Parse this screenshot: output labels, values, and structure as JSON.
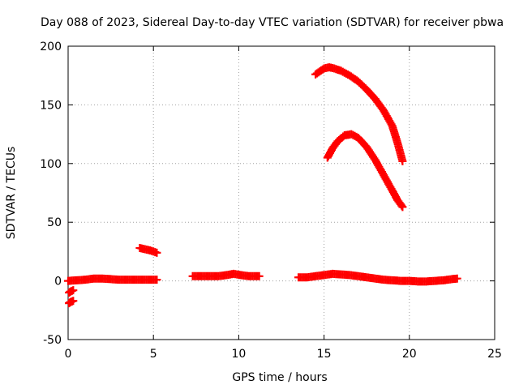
{
  "chart_data": {
    "type": "scatter",
    "title": "Day 088 of 2023, Sidereal Day-to-day VTEC variation (SDTVAR) for receiver pbwa",
    "xlabel": "GPS time / hours",
    "ylabel": "SDTVAR / TECUs",
    "xlim": [
      0,
      25
    ],
    "ylim": [
      -50,
      200
    ],
    "xticks": [
      0,
      5,
      10,
      15,
      20,
      25
    ],
    "yticks": [
      -50,
      0,
      50,
      100,
      150,
      200
    ],
    "grid": true,
    "series_color": "#ff0000",
    "series": [
      {
        "name": "arc-start-1",
        "points": [
          [
            0.05,
            -10
          ],
          [
            0.15,
            -9
          ],
          [
            0.3,
            -8
          ]
        ]
      },
      {
        "name": "arc-start-2",
        "points": [
          [
            0.05,
            -19
          ],
          [
            0.15,
            -18
          ],
          [
            0.3,
            -17
          ]
        ]
      },
      {
        "name": "baseline-1",
        "points": [
          [
            0,
            0
          ],
          [
            0.5,
            0.5
          ],
          [
            1,
            1
          ],
          [
            1.5,
            2
          ],
          [
            2,
            2
          ],
          [
            2.5,
            1.5
          ],
          [
            3,
            1
          ],
          [
            3.5,
            1
          ],
          [
            4,
            1
          ],
          [
            4.5,
            1
          ],
          [
            5,
            1
          ],
          [
            5.2,
            1
          ]
        ]
      },
      {
        "name": "short-arc-1",
        "points": [
          [
            4.2,
            28
          ],
          [
            4.5,
            27
          ],
          [
            4.8,
            26
          ],
          [
            5.0,
            25
          ],
          [
            5.2,
            24
          ]
        ]
      },
      {
        "name": "baseline-2",
        "points": [
          [
            7.3,
            4
          ],
          [
            7.8,
            4
          ],
          [
            8.3,
            4
          ],
          [
            8.8,
            4
          ],
          [
            9.3,
            5
          ],
          [
            9.7,
            6
          ],
          [
            10.1,
            5
          ],
          [
            10.6,
            4
          ],
          [
            11.2,
            4
          ]
        ]
      },
      {
        "name": "baseline-3",
        "points": [
          [
            13.5,
            3
          ],
          [
            14,
            3
          ],
          [
            14.5,
            4
          ],
          [
            15,
            5
          ],
          [
            15.5,
            6
          ],
          [
            16,
            5.5
          ],
          [
            16.5,
            5
          ],
          [
            17,
            4
          ],
          [
            17.5,
            3
          ],
          [
            18,
            2
          ],
          [
            18.5,
            1
          ],
          [
            19,
            0.5
          ],
          [
            19.5,
            0
          ],
          [
            20,
            0
          ],
          [
            20.5,
            -0.5
          ],
          [
            21,
            -0.5
          ],
          [
            21.5,
            0
          ],
          [
            22,
            0.5
          ],
          [
            22.5,
            1.5
          ],
          [
            22.8,
            2
          ]
        ]
      },
      {
        "name": "high-arc-1",
        "points": [
          [
            14.5,
            176
          ],
          [
            15,
            181
          ],
          [
            15.3,
            182
          ],
          [
            15.6,
            181
          ],
          [
            16,
            179
          ],
          [
            16.5,
            175
          ],
          [
            17,
            170
          ],
          [
            17.5,
            163
          ],
          [
            18,
            155
          ],
          [
            18.5,
            145
          ],
          [
            19,
            132
          ],
          [
            19.3,
            118
          ],
          [
            19.6,
            102
          ]
        ]
      },
      {
        "name": "high-arc-2",
        "points": [
          [
            15.2,
            105
          ],
          [
            15.5,
            113
          ],
          [
            15.8,
            119
          ],
          [
            16.2,
            124
          ],
          [
            16.6,
            125
          ],
          [
            17,
            122
          ],
          [
            17.5,
            114
          ],
          [
            18,
            103
          ],
          [
            18.5,
            90
          ],
          [
            19,
            77
          ],
          [
            19.3,
            69
          ],
          [
            19.6,
            63
          ]
        ]
      }
    ]
  }
}
